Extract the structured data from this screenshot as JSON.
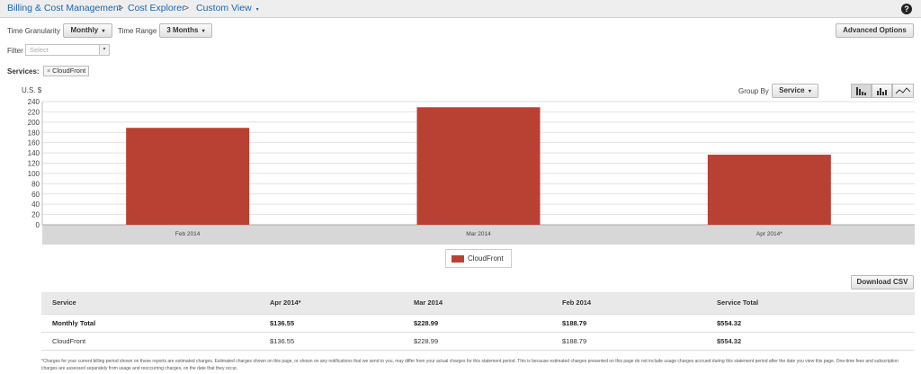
{
  "breadcrumb": {
    "item1": "Billing & Cost Management",
    "sep1": ">",
    "item2": "Cost Explorer",
    "sep2": ">",
    "item3": "Custom View",
    "caret": "▾"
  },
  "help_icon": "?",
  "controls": {
    "time_granularity_label": "Time Granularity",
    "time_granularity_value": "Monthly",
    "time_range_label": "Time Range",
    "time_range_value": "3 Months",
    "advanced_options": "Advanced Options",
    "filter_label": "Filter",
    "filter_placeholder": "Select",
    "services_label": "Services:",
    "service_tag": "CloudFront",
    "group_by_label": "Group By",
    "group_by_value": "Service"
  },
  "icons": {
    "chart_type_buttons": [
      "bar-chart-icon",
      "stacked-bar-chart-icon",
      "line-chart-icon"
    ]
  },
  "chart_data": {
    "type": "bar",
    "ylabel": "U.S. $",
    "ylim": [
      0,
      240
    ],
    "yticks": [
      0,
      20,
      40,
      60,
      80,
      100,
      120,
      140,
      160,
      180,
      200,
      220,
      240
    ],
    "categories": [
      "Feb 2014",
      "Mar 2014",
      "Apr 2014*"
    ],
    "series": [
      {
        "name": "CloudFront",
        "values": [
          188.79,
          228.99,
          136.55
        ],
        "color": "#b94133"
      }
    ],
    "grid": true,
    "legend": "bottom-center"
  },
  "download_csv": "Download CSV",
  "table": {
    "headers": [
      "Service",
      "Apr 2014*",
      "Mar 2014",
      "Feb 2014",
      "Service Total"
    ],
    "total_row": [
      "Monthly Total",
      "$136.55",
      "$228.99",
      "$188.79",
      "$554.32"
    ],
    "rows": [
      [
        "CloudFront",
        "$136.55",
        "$228.99",
        "$188.79",
        "$554.32"
      ]
    ]
  },
  "footnote": "*Charges for your current billing period shown on these reports are estimated charges. Estimated charges shown on this page, or shown on any notifications that we send to you, may differ from your actual charges for this statement period. This is because estimated charges presented on this page do not include usage charges accrued during this statement period after the date you view this page. One-time fees and subscription charges are assessed separately from usage and reoccurring charges, on the date that they occur."
}
